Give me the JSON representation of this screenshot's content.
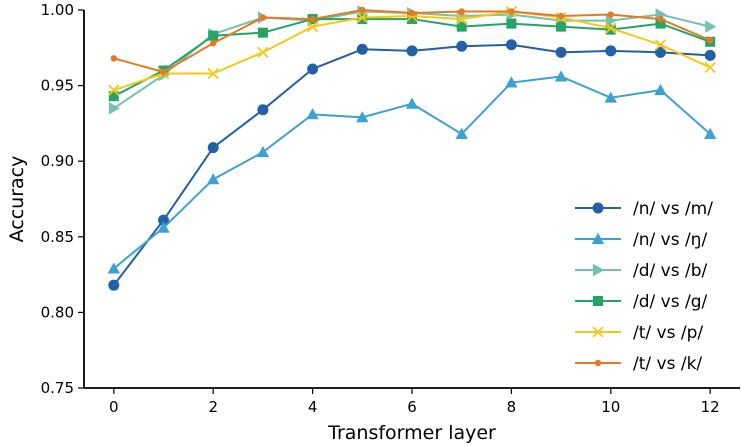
{
  "chart_data": {
    "type": "line",
    "title": "",
    "xlabel": "Transformer layer",
    "ylabel": "Accuracy",
    "xlim": [
      -0.6,
      12.6
    ],
    "ylim": [
      0.75,
      1.0
    ],
    "xticks": [
      0,
      2,
      4,
      6,
      8,
      10,
      12
    ],
    "xtick_labels": [
      "0",
      "2",
      "4",
      "6",
      "8",
      "10",
      "12"
    ],
    "yticks": [
      0.75,
      0.8,
      0.85,
      0.9,
      0.95,
      1.0
    ],
    "ytick_labels": [
      "0.75",
      "0.80",
      "0.85",
      "0.90",
      "0.95",
      "1.00"
    ],
    "grid": false,
    "legend_position": "lower-right",
    "x": [
      0,
      1,
      2,
      3,
      4,
      5,
      6,
      7,
      8,
      9,
      10,
      11,
      12
    ],
    "series": [
      {
        "name": "/n/ vs /m/",
        "color": "#2460a7",
        "marker": "circle",
        "values": [
          0.818,
          0.861,
          0.909,
          0.934,
          0.961,
          0.974,
          0.973,
          0.976,
          0.977,
          0.972,
          0.973,
          0.972,
          0.97
        ]
      },
      {
        "name": "/n/ vs /ŋ/",
        "color": "#3ca2d6",
        "marker": "triangle-up",
        "values": [
          0.829,
          0.856,
          0.888,
          0.906,
          0.931,
          0.929,
          0.938,
          0.918,
          0.952,
          0.956,
          0.942,
          0.947,
          0.918
        ]
      },
      {
        "name": "/d/ vs /b/",
        "color": "#73c2b0",
        "marker": "triangle-right",
        "values": [
          0.935,
          0.957,
          0.984,
          0.995,
          0.993,
          0.999,
          0.998,
          0.996,
          0.997,
          0.993,
          0.993,
          0.997,
          0.989
        ]
      },
      {
        "name": "/d/ vs /g/",
        "color": "#24a466",
        "marker": "square",
        "values": [
          0.943,
          0.96,
          0.983,
          0.985,
          0.994,
          0.994,
          0.994,
          0.989,
          0.991,
          0.989,
          0.987,
          0.991,
          0.979
        ]
      },
      {
        "name": "/t/ vs /p/",
        "color": "#f7c716",
        "marker": "x",
        "values": [
          0.947,
          0.958,
          0.958,
          0.972,
          0.989,
          0.995,
          0.996,
          0.994,
          0.999,
          0.995,
          0.988,
          0.977,
          0.962
        ]
      },
      {
        "name": "/t/ vs /k/",
        "color": "#e67a22",
        "marker": "small-circle",
        "values": [
          0.968,
          0.959,
          0.978,
          0.995,
          0.994,
          1.0,
          0.998,
          0.999,
          0.999,
          0.996,
          0.997,
          0.994,
          0.98
        ]
      }
    ]
  }
}
